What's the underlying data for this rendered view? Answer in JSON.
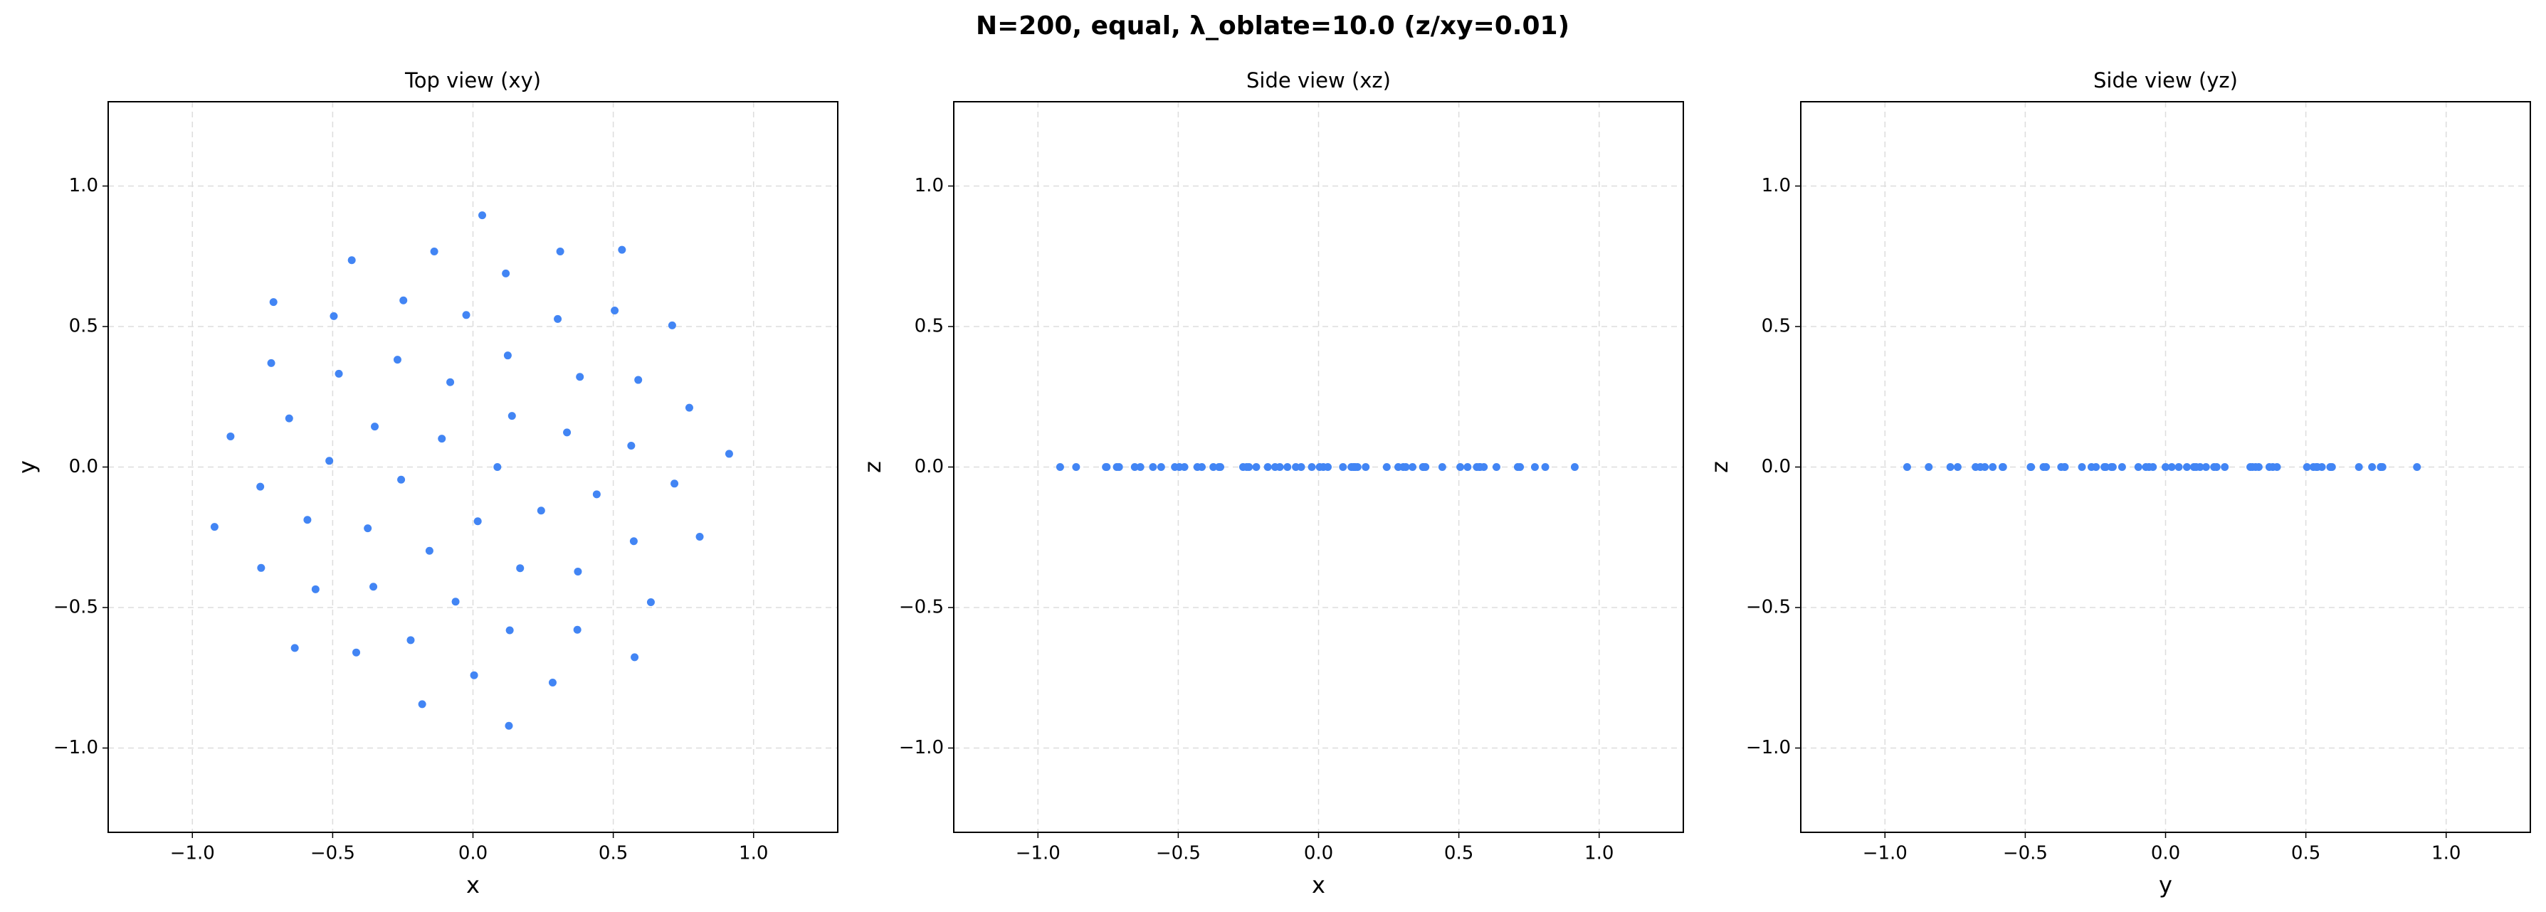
{
  "title": "N=200, equal, λ_oblate=10.0  (z/xy=0.01)",
  "chart_data": [
    {
      "type": "scatter",
      "title": "Top view (xy)",
      "xlabel": "x",
      "ylabel": "y",
      "color": "#4285f4",
      "grid": true,
      "xlim": [
        -1.3,
        1.3
      ],
      "ylim": [
        -1.3,
        1.3
      ],
      "xticks": [
        {
          "value": -1.0,
          "label": "−1.0"
        },
        {
          "value": -0.5,
          "label": "−0.5"
        },
        {
          "value": 0,
          "label": "0.0"
        },
        {
          "value": 0.5,
          "label": "0.5"
        },
        {
          "value": 1.0,
          "label": "1.0"
        }
      ],
      "yticks": [
        {
          "value": -1.0,
          "label": "−1.0"
        },
        {
          "value": -0.5,
          "label": "−0.5"
        },
        {
          "value": 0,
          "label": "0.0"
        },
        {
          "value": 0.5,
          "label": "0.5"
        },
        {
          "value": 1.0,
          "label": "1.0"
        }
      ],
      "x": [
        0.087,
        -0.111,
        0.017,
        0.139,
        -0.256,
        0.243,
        -0.081,
        -0.155,
        0.335,
        -0.35,
        0.168,
        0.124,
        -0.375,
        0.441,
        -0.269,
        -0.062,
        0.381,
        -0.512,
        0.374,
        -0.024,
        -0.355,
        0.564,
        -0.478,
        0.131,
        0.302,
        -0.59,
        0.573,
        -0.248,
        -0.222,
        0.589,
        -0.655,
        0.372,
        0.117,
        -0.561,
        0.718,
        -0.496,
        0.004,
        0.505,
        -0.758,
        0.634,
        -0.138,
        -0.416,
        0.771,
        -0.719,
        0.284,
        0.311,
        -0.755,
        0.808,
        -0.432,
        -0.181,
        0.71,
        -0.864,
        0.576,
        0.033,
        -0.635,
        0.913,
        -0.711,
        0.128,
        0.531,
        -0.921
      ],
      "y": [
        0,
        0.101,
        -0.193,
        0.182,
        -0.045,
        -0.155,
        0.302,
        -0.298,
        0.123,
        0.144,
        -0.36,
        0.397,
        -0.218,
        -0.097,
        0.382,
        -0.479,
        0.321,
        0.022,
        -0.372,
        0.541,
        -0.426,
        0.076,
        0.332,
        -0.581,
        0.527,
        -0.188,
        -0.264,
        0.593,
        -0.616,
        0.31,
        0.173,
        -0.579,
        0.689,
        -0.435,
        -0.059,
        0.537,
        -0.741,
        0.557,
        -0.07,
        -0.481,
        0.767,
        -0.66,
        0.211,
        0.37,
        -0.767,
        0.767,
        -0.359,
        -0.248,
        0.736,
        -0.844,
        0.504,
        0.109,
        -0.677,
        0.896,
        -0.644,
        0.047,
        0.587,
        -0.921,
        0.773,
        -0.213
      ]
    },
    {
      "type": "scatter",
      "title": "Side view (xz)",
      "xlabel": "x",
      "ylabel": "z",
      "color": "#4285f4",
      "grid": true,
      "xlim": [
        -1.3,
        1.3
      ],
      "ylim": [
        -1.3,
        1.3
      ],
      "xticks": [
        {
          "value": -1.0,
          "label": "−1.0"
        },
        {
          "value": -0.5,
          "label": "−0.5"
        },
        {
          "value": 0,
          "label": "0.0"
        },
        {
          "value": 0.5,
          "label": "0.5"
        },
        {
          "value": 1.0,
          "label": "1.0"
        }
      ],
      "yticks": [
        {
          "value": -1.0,
          "label": "−1.0"
        },
        {
          "value": -0.5,
          "label": "−0.5"
        },
        {
          "value": 0,
          "label": "0.0"
        },
        {
          "value": 0.5,
          "label": "0.5"
        },
        {
          "value": 1.0,
          "label": "1.0"
        }
      ],
      "x": [
        0.087,
        -0.111,
        0.017,
        0.139,
        -0.256,
        0.243,
        -0.081,
        -0.155,
        0.335,
        -0.35,
        0.168,
        0.124,
        -0.375,
        0.441,
        -0.269,
        -0.062,
        0.381,
        -0.512,
        0.374,
        -0.024,
        -0.355,
        0.564,
        -0.478,
        0.131,
        0.302,
        -0.59,
        0.573,
        -0.248,
        -0.222,
        0.589,
        -0.655,
        0.372,
        0.117,
        -0.561,
        0.718,
        -0.496,
        0.004,
        0.505,
        -0.758,
        0.634,
        -0.138,
        -0.416,
        0.771,
        -0.719,
        0.284,
        0.311,
        -0.755,
        0.808,
        -0.432,
        -0.181,
        0.71,
        -0.864,
        0.576,
        0.033,
        -0.635,
        0.913,
        -0.711,
        0.128,
        0.531,
        -0.921
      ],
      "y": [
        0,
        0,
        0,
        0,
        0,
        0,
        0,
        0,
        0,
        0,
        0,
        0,
        0,
        0,
        0,
        0,
        0,
        0,
        0,
        0,
        0,
        0,
        0,
        0,
        0,
        0,
        0,
        0,
        0,
        0,
        0,
        0,
        0,
        0,
        0,
        0,
        0,
        0,
        0,
        0,
        0,
        0,
        0,
        0,
        0,
        0,
        0,
        0,
        0,
        0,
        0,
        0,
        0,
        0,
        0,
        0,
        0,
        0,
        0,
        0
      ]
    },
    {
      "type": "scatter",
      "title": "Side view (yz)",
      "xlabel": "y",
      "ylabel": "z",
      "color": "#4285f4",
      "grid": true,
      "xlim": [
        -1.3,
        1.3
      ],
      "ylim": [
        -1.3,
        1.3
      ],
      "xticks": [
        {
          "value": -1.0,
          "label": "−1.0"
        },
        {
          "value": -0.5,
          "label": "−0.5"
        },
        {
          "value": 0,
          "label": "0.0"
        },
        {
          "value": 0.5,
          "label": "0.5"
        },
        {
          "value": 1.0,
          "label": "1.0"
        }
      ],
      "yticks": [
        {
          "value": -1.0,
          "label": "−1.0"
        },
        {
          "value": -0.5,
          "label": "−0.5"
        },
        {
          "value": 0,
          "label": "0.0"
        },
        {
          "value": 0.5,
          "label": "0.5"
        },
        {
          "value": 1.0,
          "label": "1.0"
        }
      ],
      "x": [
        0,
        0.101,
        -0.193,
        0.182,
        -0.045,
        -0.155,
        0.302,
        -0.298,
        0.123,
        0.144,
        -0.36,
        0.397,
        -0.218,
        -0.097,
        0.382,
        -0.479,
        0.321,
        0.022,
        -0.372,
        0.541,
        -0.426,
        0.076,
        0.332,
        -0.581,
        0.527,
        -0.188,
        -0.264,
        0.593,
        -0.616,
        0.31,
        0.173,
        -0.579,
        0.689,
        -0.435,
        -0.059,
        0.537,
        -0.741,
        0.557,
        -0.07,
        -0.481,
        0.767,
        -0.66,
        0.211,
        0.37,
        -0.767,
        0.767,
        -0.359,
        -0.248,
        0.736,
        -0.844,
        0.504,
        0.109,
        -0.677,
        0.896,
        -0.644,
        0.047,
        0.587,
        -0.921,
        0.773,
        -0.213
      ],
      "y": [
        0,
        0,
        0,
        0,
        0,
        0,
        0,
        0,
        0,
        0,
        0,
        0,
        0,
        0,
        0,
        0,
        0,
        0,
        0,
        0,
        0,
        0,
        0,
        0,
        0,
        0,
        0,
        0,
        0,
        0,
        0,
        0,
        0,
        0,
        0,
        0,
        0,
        0,
        0,
        0,
        0,
        0,
        0,
        0,
        0,
        0,
        0,
        0,
        0,
        0,
        0,
        0,
        0,
        0,
        0,
        0,
        0,
        0,
        0,
        0
      ]
    }
  ]
}
